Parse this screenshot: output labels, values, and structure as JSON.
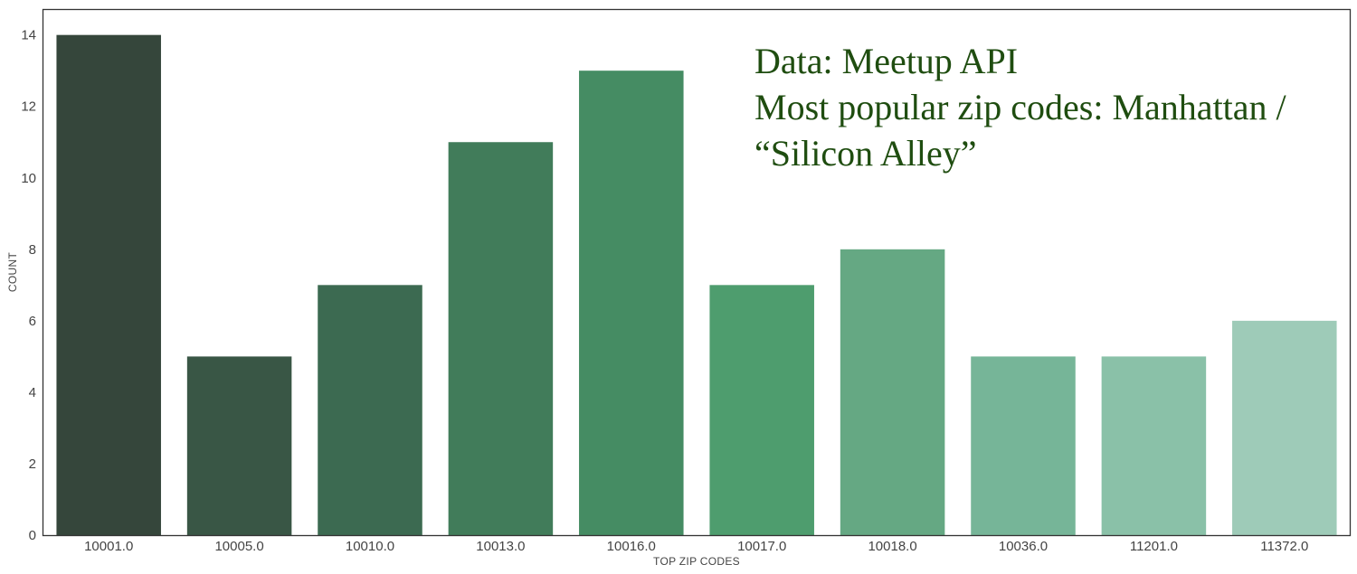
{
  "chart_data": {
    "type": "bar",
    "title": "",
    "xlabel": "TOP ZIP CODES",
    "ylabel": "COUNT",
    "categories": [
      "10001.0",
      "10005.0",
      "10010.0",
      "10013.0",
      "10016.0",
      "10017.0",
      "10018.0",
      "10036.0",
      "11201.0",
      "11372.0"
    ],
    "values": [
      14,
      5,
      7,
      11,
      13,
      7,
      8,
      5,
      5,
      6
    ],
    "ylim": [
      0,
      14.7
    ],
    "yticks": [
      "0",
      "2",
      "4",
      "6",
      "8",
      "10",
      "12",
      "14"
    ],
    "grid": false,
    "legend": "none",
    "bar_colors": [
      "#35463b",
      "#395645",
      "#3c6a51",
      "#417c5a",
      "#458c63",
      "#4e9d6e",
      "#65a883",
      "#76b598",
      "#8ac1a8",
      "#9ecbb8"
    ],
    "annotations": [
      "Data: Meetup API",
      "Most popular zip codes: Manhattan /",
      "“Silicon Alley”"
    ],
    "annotation_color": "#1f4d10"
  }
}
